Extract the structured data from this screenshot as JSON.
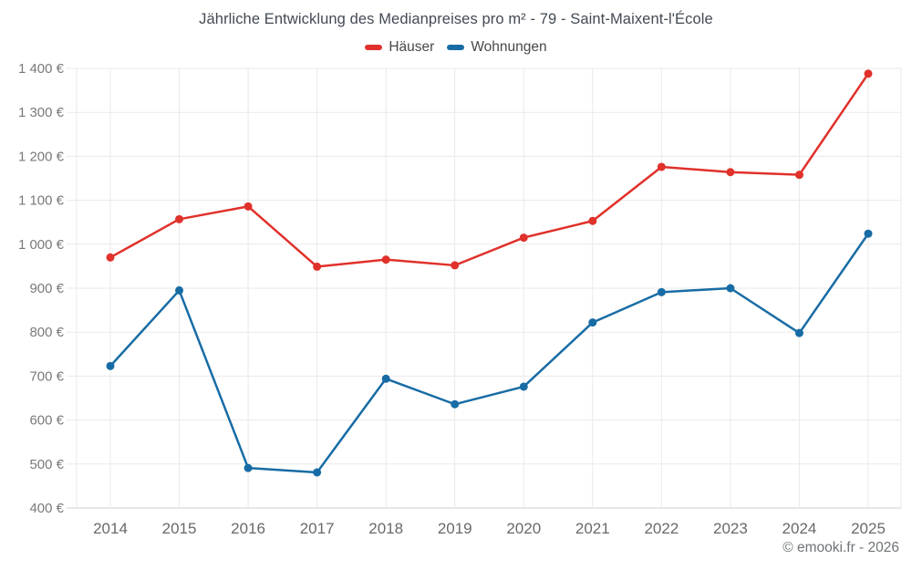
{
  "title": "Jährliche Entwicklung des Medianpreises pro m² - 79 - Saint-Maixent-l'École",
  "legend": [
    {
      "label": "Häuser"
    },
    {
      "label": "Wohnungen"
    }
  ],
  "footer": "© emooki.fr - 2026",
  "colors": {
    "haeuser": "#e0312b",
    "wohnungen": "#186ca5",
    "grid": "#eaeaea",
    "axis": "#cfcfcf",
    "y_tick_text": "#7a7a7a",
    "x_tick_text": "#68696b"
  },
  "chart_data": {
    "type": "line",
    "title": "Jährliche Entwicklung des Medianpreises pro m² - 79 - Saint-Maixent-l'École",
    "x": [
      "2014",
      "2015",
      "2016",
      "2017",
      "2018",
      "2019",
      "2020",
      "2021",
      "2022",
      "2023",
      "2024",
      "2025"
    ],
    "series": [
      {
        "name": "Häuser",
        "color": "#e0312b",
        "values": [
          970,
          1057,
          1086,
          949,
          965,
          952,
          1015,
          1053,
          1176,
          1164,
          1158,
          1388
        ]
      },
      {
        "name": "Wohnungen",
        "color": "#186ca5",
        "values": [
          723,
          895,
          491,
          481,
          694,
          636,
          676,
          822,
          891,
          900,
          798,
          1024
        ]
      }
    ],
    "xlabel": "",
    "ylabel": "",
    "ylim": [
      400,
      1400
    ],
    "y_tick_step": 100,
    "y_tick_labels": [
      "400 €",
      "500 €",
      "600 €",
      "700 €",
      "800 €",
      "900 €",
      "1 000 €",
      "1 100 €",
      "1 200 €",
      "1 300 €",
      "1 400 €"
    ],
    "grid": true,
    "legend_position": "top",
    "marker_radius": 4.5,
    "line_width": 2.5
  }
}
